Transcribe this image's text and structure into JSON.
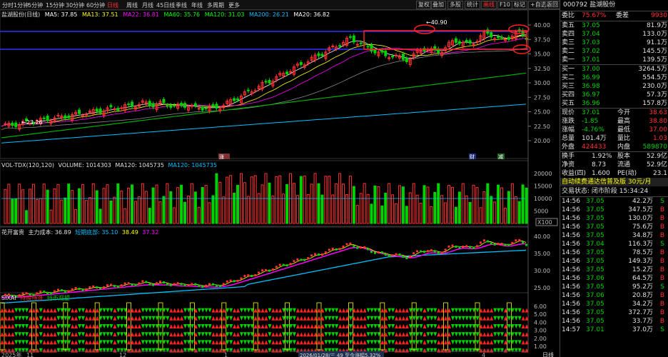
{
  "toolbar": {
    "periods": [
      "分时",
      "1分钟",
      "5分钟",
      "15分钟",
      "30分钟",
      "60分钟",
      "日线",
      "周线",
      "月线",
      "45日线",
      "季线",
      "年线",
      "多周期",
      "更多"
    ],
    "active_period": "日线",
    "right_buttons": [
      "复权",
      "叠加",
      "多股",
      "统计",
      "画线",
      "F10",
      "标记",
      "+自选",
      "返回"
    ],
    "active_right": "画线"
  },
  "main_legend": {
    "name": "盐湖股份(日线)",
    "ma5": "MA5: 37.85",
    "ma13": "MA13: 37.51",
    "ma22": "MA22: 36.81",
    "ma60": "MA60: 35.76",
    "ma120": "MA120: 31.03",
    "ma200": "MA200: 26.21",
    "ma20": "MA20: 36.82",
    "name_short": "盐湖股份"
  },
  "price_axis": [
    "40.00",
    "37.50",
    "35.00",
    "32.50",
    "30.00",
    "27.50",
    "25.00",
    "22.50",
    "20.00"
  ],
  "annotations": {
    "high": "40.90",
    "low": "23.26",
    "flag_left": "涨",
    "flag_r1": "财",
    "flag_r2": "减"
  },
  "vol_legend": {
    "title": "VOL-TDX(120,120)",
    "volume": "VOLUME: 1014303",
    "ma120": "MA120: 1045735",
    "ma120b": "MA120: 1045735"
  },
  "vol_axis": [
    "20000",
    "15000",
    "10000",
    "5000"
  ],
  "vol_unit": "X100",
  "hk_legend": {
    "title": "花开富贵",
    "main": "主力成本: 36.89",
    "bottom": "短期底部: 35.10",
    "mid": "38.49",
    "top": "37.32"
  },
  "hk_axis": [
    "40.00",
    "35.00",
    "30.00",
    "25.00"
  ],
  "sixai_legend": {
    "title": "SIXAI",
    "a": "持股待涨",
    "b": "持币观望"
  },
  "sixai_axis": [
    "6.00",
    "5.00",
    "4.00",
    "3.00",
    "2.00",
    "1.00"
  ],
  "x_axis": {
    "start": "2025年",
    "m11": "11",
    "m12": "12",
    "m1": "1",
    "m2": "2",
    "m3": "3",
    "m4": "4",
    "status": "2026/01/28/三 49 至今涨幅5.32%",
    "label": "日线"
  },
  "quote": {
    "code_title": "000792 盐湖股份",
    "weibi_label": "委比",
    "weibi": "75.67%",
    "weicha_label": "委差",
    "weicha": "9930",
    "asks": [
      [
        "卖五",
        "37.05",
        "81.9万"
      ],
      [
        "卖四",
        "37.04",
        "133.0万"
      ],
      [
        "卖三",
        "37.03",
        "91.1万"
      ],
      [
        "卖二",
        "37.02",
        "145.5万"
      ],
      [
        "卖一",
        "37.01",
        "139.5万"
      ]
    ],
    "bids": [
      [
        "买一",
        "37.00",
        "3264.5万"
      ],
      [
        "买二",
        "36.99",
        "554.5万"
      ],
      [
        "买三",
        "36.98",
        "230.0万"
      ],
      [
        "买四",
        "36.97",
        "57.3万"
      ],
      [
        "买五",
        "36.96",
        "157.8万"
      ]
    ],
    "stats": [
      [
        "现价",
        "37.01",
        "今开",
        "38.63"
      ],
      [
        "涨跌",
        "-1.85",
        "最高",
        "38.80"
      ],
      [
        "涨幅",
        "-4.76%",
        "最低",
        "37.00"
      ],
      [
        "总量",
        "101.4万",
        "量比",
        "1.03"
      ],
      [
        "外盘",
        "424433",
        "内盘",
        "589870"
      ]
    ],
    "stats2": [
      [
        "换手",
        "1.92%",
        "股本",
        "52.9亿"
      ],
      [
        "净资",
        "8.73",
        "流通",
        "52.9亿"
      ],
      [
        "收益(四)",
        "1.600",
        "PE(动)",
        "23.1"
      ]
    ],
    "banner": "自动续费通达信普及版 30元/月",
    "trade_status": "交易状态: 闭市阶段 15:34:24",
    "ticks": [
      [
        "14:56",
        "37.05",
        "42.2万",
        "S"
      ],
      [
        "14:56",
        "37.05",
        "347.5万",
        "B"
      ],
      [
        "14:56",
        "37.05",
        "130.0万",
        "B"
      ],
      [
        "14:56",
        "37.05",
        "75.6万",
        "B"
      ],
      [
        "14:56",
        "37.05",
        "34.8万",
        "B"
      ],
      [
        "14:56",
        "37.04",
        "116.3万",
        "S"
      ],
      [
        "14:56",
        "37.05",
        "78.5万",
        "B"
      ],
      [
        "14:56",
        "37.05",
        "149.3万",
        "B"
      ],
      [
        "14:56",
        "37.05",
        "15.2万",
        "B"
      ],
      [
        "14:56",
        "37.06",
        "64.5万",
        "B"
      ],
      [
        "14:56",
        "37.05",
        "95.2万",
        "S"
      ],
      [
        "14:56",
        "37.06",
        "20.8万",
        "B"
      ],
      [
        "14:56",
        "37.05",
        "34.2万",
        "B"
      ],
      [
        "14:56",
        "37.05",
        "372.7万",
        "B"
      ],
      [
        "14:56",
        "37.05",
        "33.7万",
        "B"
      ],
      [
        "14:57",
        "37.01",
        "37.0万",
        "S"
      ]
    ]
  },
  "colors": {
    "up": "#ff3232",
    "down": "#00d200",
    "bg": "#000000",
    "ma5": "#ffffff",
    "ma13": "#ffff00",
    "ma22": "#ff00ff",
    "ma60": "#00ff00",
    "ma120": "#00c0ff",
    "line_blue": "#3030ff"
  }
}
